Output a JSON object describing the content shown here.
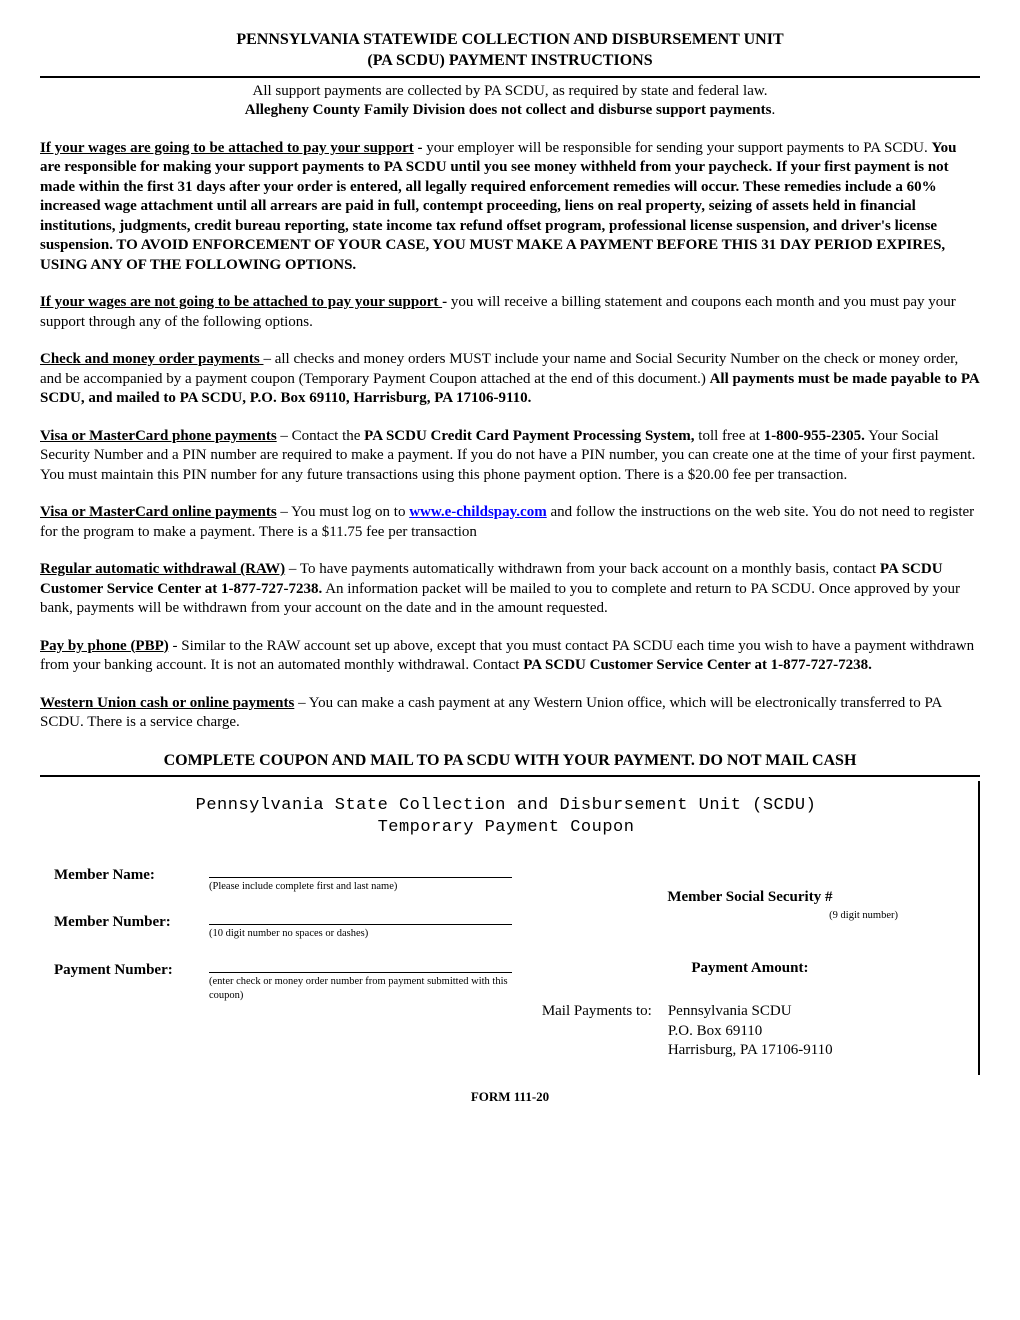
{
  "header": {
    "title_line1": "PENNSYLVANIA STATEWIDE COLLECTION AND DISBURSEMENT UNIT",
    "title_line2": "(PA SCDU) PAYMENT INSTRUCTIONS",
    "subtitle_line1": "All support payments are collected by PA SCDU, as required by state and federal law.",
    "subtitle_line2": "Allegheny County Family Division does not collect and disburse support payments"
  },
  "p1": {
    "lead": "If your wages are going to  be attached to pay your support",
    "dash": " -  ",
    "t1": "your employer will be responsible for sending your support payments to PA SCDU. ",
    "b1": "You are responsible for making your support payments to PA SCDU until you see money withheld from your paycheck.  If your first  payment is not made within the first 31 days after your order is entered, all legally required enforcement remedies will occur. These remedies include a 60% increased wage attachment until all arrears are paid in full, contempt proceeding, liens on real property, seizing of assets held in financial institutions, judgments, credit bureau reporting, state income tax refund offset program, professional license suspension, and driver's license suspension. TO AVOID ENFORCEMENT OF YOUR CASE, YOU MUST MAKE A PAYMENT BEFORE THIS 31 DAY PERIOD EXPIRES, USING ANY OF THE FOLLOWING OPTIONS."
  },
  "p2": {
    "lead": "If your wages are not  going to be attached to pay your  support ",
    "dash": " - ",
    "t1": "you will receive a billing statement and coupons each month and you must pay your support through any of the following options."
  },
  "p3": {
    "lead": "Check and money order payments ",
    "dash": "– ",
    "t1": "all checks and money orders MUST include your name and Social Security Number on the check or money order, and be accompanied by a payment coupon (Temporary Payment Coupon attached at the end of this document.) ",
    "b1": "All payments must be made payable to PA SCDU, and mailed to PA SCDU, P.O. Box 69110, Harrisburg, PA 17106-9110."
  },
  "p4": {
    "lead": "Visa or MasterCard phone payments",
    "dash": " – ",
    "t1": "Contact the ",
    "b1": "PA SCDU Credit Card Payment Processing System,",
    "t2": " toll free at ",
    "b2": "1-800-955-2305.",
    "t3": " Your Social Security Number and a PIN number are required to make a payment. If you do not have a PIN number, you can create one at  the time of your first payment. You must maintain this PIN number for any future transactions using this phone payment option. There is a $20.00 fee per transaction."
  },
  "p5": {
    "lead": "Visa or MasterCard online payments",
    "dash": " – ",
    "t1": "You must log on to ",
    "link_text": "www.e-childspay.com",
    "link_href": "http://www.e-childspay.com",
    "t2": " and follow the instructions on the web site. You do not need to register for the program to make a payment. There is a $11.75 fee per transaction"
  },
  "p6": {
    "lead": "Regular automatic withdrawal (RAW)",
    "dash": " – ",
    "t1": "To have payments automatically withdrawn from your back account on a monthly basis, contact ",
    "b1": "PA SCDU Customer Service Center at 1-877-727-7238.",
    "t2": " An information packet will be mailed to you to complete and return to PA SCDU. Once approved by your bank, payments will be withdrawn from your account on the date and in the amount requested."
  },
  "p7": {
    "lead": "Pay by phone (PBP)",
    "dash": " - ",
    "t1": "Similar to the RAW account set up above, except that you must contact PA SCDU each time you wish to have a payment withdrawn from your banking account.  It is not an automated monthly withdrawal. Contact ",
    "b1": "PA SCDU Customer Service Center at 1-877-727-7238."
  },
  "p8": {
    "lead": "Western Union cash or online payments",
    "dash": " – ",
    "t1": "You can make a cash payment at any Western Union office, which will be electronically transferred to PA SCDU. There is a service charge."
  },
  "coupon_header": "COMPLETE COUPON AND MAIL TO PA SCDU WITH YOUR PAYMENT. DO NOT MAIL CASH",
  "coupon": {
    "title": "Pennsylvania State Collection and Disbursement Unit (SCDU)",
    "subtitle": "Temporary Payment Coupon",
    "member_name_label": "Member Name:",
    "member_name_hint": "(Please include complete first and last name)",
    "member_number_label": "Member Number:",
    "member_number_hint": "(10 digit number no spaces or dashes)",
    "payment_number_label": "Payment Number:",
    "payment_number_hint": "(enter check or money order number from payment submitted with this coupon)",
    "ssn_label": "Member Social Security #",
    "ssn_hint": "(9 digit number)",
    "amount_label": "Payment Amount:",
    "mail_label": "Mail Payments to:",
    "mail_addr1": "Pennsylvania SCDU",
    "mail_addr2": "P.O. Box 69110",
    "mail_addr3": "Harrisburg, PA 17106-9110"
  },
  "form_number": "FORM 111-20"
}
